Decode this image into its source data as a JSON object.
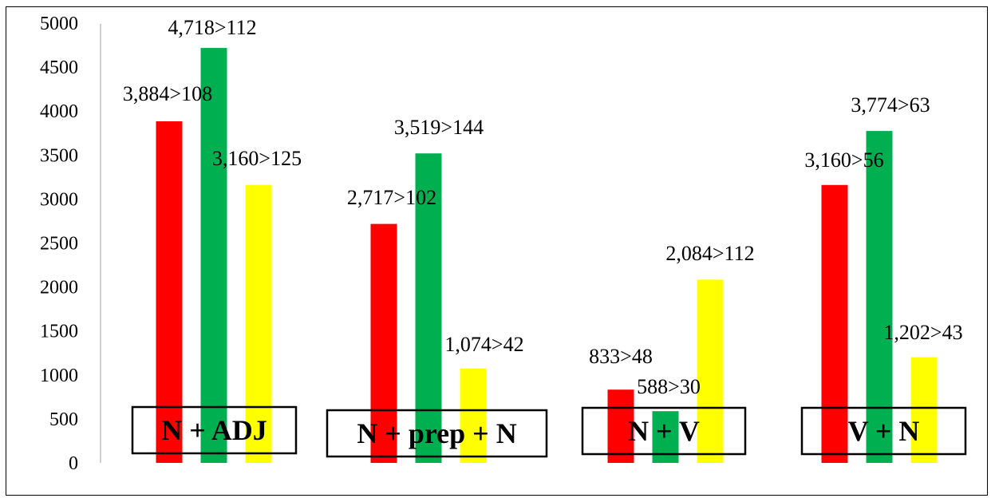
{
  "chart_data": {
    "type": "bar",
    "categories": [
      "N + ADJ",
      "N + prep + N",
      "N + V",
      "V + N"
    ],
    "series": [
      {
        "values": [
          3884,
          2717,
          833,
          3160
        ],
        "color": "#ff0000"
      },
      {
        "values": [
          4718,
          3519,
          588,
          3774
        ],
        "color": "#00b050"
      },
      {
        "values": [
          3160,
          1074,
          2084,
          1202
        ],
        "color": "#ffff00"
      }
    ],
    "data_labels": [
      [
        "3,884>108",
        "2,717>102",
        "833>48",
        "3,160>56"
      ],
      [
        "4,718>112",
        "3,519>144",
        "588>30",
        "3,774>63"
      ],
      [
        "3,160>125",
        "1,074>42",
        "2,084>112",
        "1,202>43"
      ]
    ],
    "yticks": [
      "0",
      "500",
      "1000",
      "1500",
      "2000",
      "2500",
      "3000",
      "3500",
      "4000",
      "4500",
      "5000"
    ],
    "ylim": [
      0,
      5000
    ],
    "grid": false,
    "title": "",
    "xlabel": "",
    "ylabel": ""
  }
}
